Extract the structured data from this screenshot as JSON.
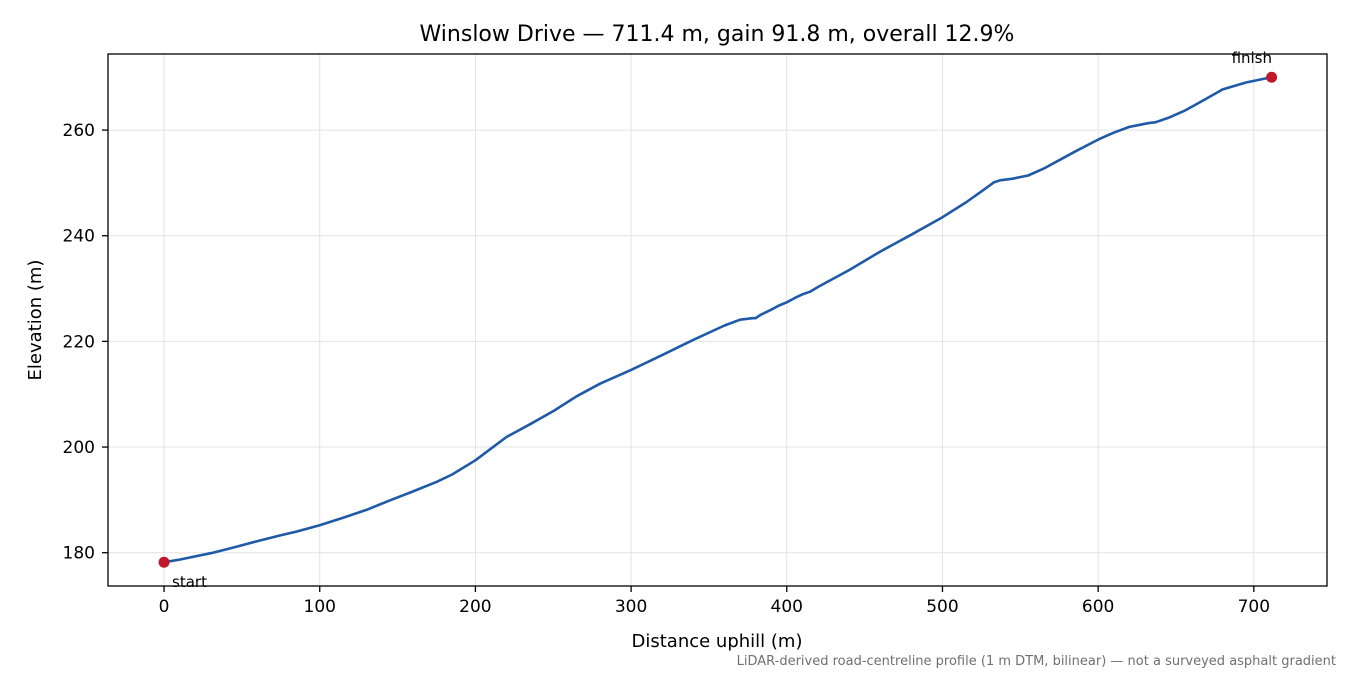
{
  "chart_data": {
    "type": "line",
    "title": "Winslow Drive — 711.4 m, gain 91.8 m, overall 12.9%",
    "xlabel": "Distance uphill (m)",
    "ylabel": "Elevation (m)",
    "footnote": "LiDAR-derived road-centreline profile (1 m DTM, bilinear) — not a surveyed asphalt gradient",
    "xlim": [
      -36,
      747
    ],
    "ylim": [
      173.7,
      274.4
    ],
    "xticks": [
      0,
      100,
      200,
      300,
      400,
      500,
      600,
      700
    ],
    "yticks": [
      180,
      200,
      220,
      240,
      260
    ],
    "grid": true,
    "series": [
      {
        "color": "#1f5aa8",
        "x": [
          0,
          10,
          20,
          30,
          45,
          60,
          75,
          85,
          100,
          115,
          130,
          145,
          160,
          175,
          185,
          200,
          210,
          220,
          235,
          250,
          265,
          280,
          300,
          320,
          340,
          360,
          370,
          378,
          380,
          383,
          390,
          395,
          400,
          405,
          410,
          415,
          420,
          440,
          460,
          480,
          500,
          515,
          525,
          533,
          537,
          545,
          555,
          565,
          575,
          585,
          600,
          610,
          620,
          632,
          637,
          645,
          655,
          665,
          680,
          695,
          711.4
        ],
        "y": [
          178.2,
          178.7,
          179.3,
          179.9,
          181.0,
          182.2,
          183.3,
          184.0,
          185.2,
          186.6,
          188.1,
          189.9,
          191.6,
          193.4,
          194.8,
          197.5,
          199.7,
          201.9,
          204.3,
          206.8,
          209.6,
          212.0,
          214.6,
          217.4,
          220.3,
          223.0,
          224.1,
          224.4,
          224.4,
          225.0,
          226.0,
          226.8,
          227.4,
          228.2,
          228.9,
          229.4,
          230.3,
          233.5,
          237.0,
          240.2,
          243.5,
          246.3,
          248.4,
          250.1,
          250.5,
          250.8,
          251.4,
          252.7,
          254.3,
          255.9,
          258.2,
          259.5,
          260.6,
          261.3,
          261.5,
          262.3,
          263.6,
          265.2,
          267.7,
          269.0,
          270.0
        ]
      }
    ],
    "markers": [
      {
        "x": 0,
        "y": 178.2,
        "label": "start",
        "color": "#c0182a"
      },
      {
        "x": 711.4,
        "y": 270.0,
        "label": "finish",
        "color": "#c0182a"
      }
    ]
  }
}
